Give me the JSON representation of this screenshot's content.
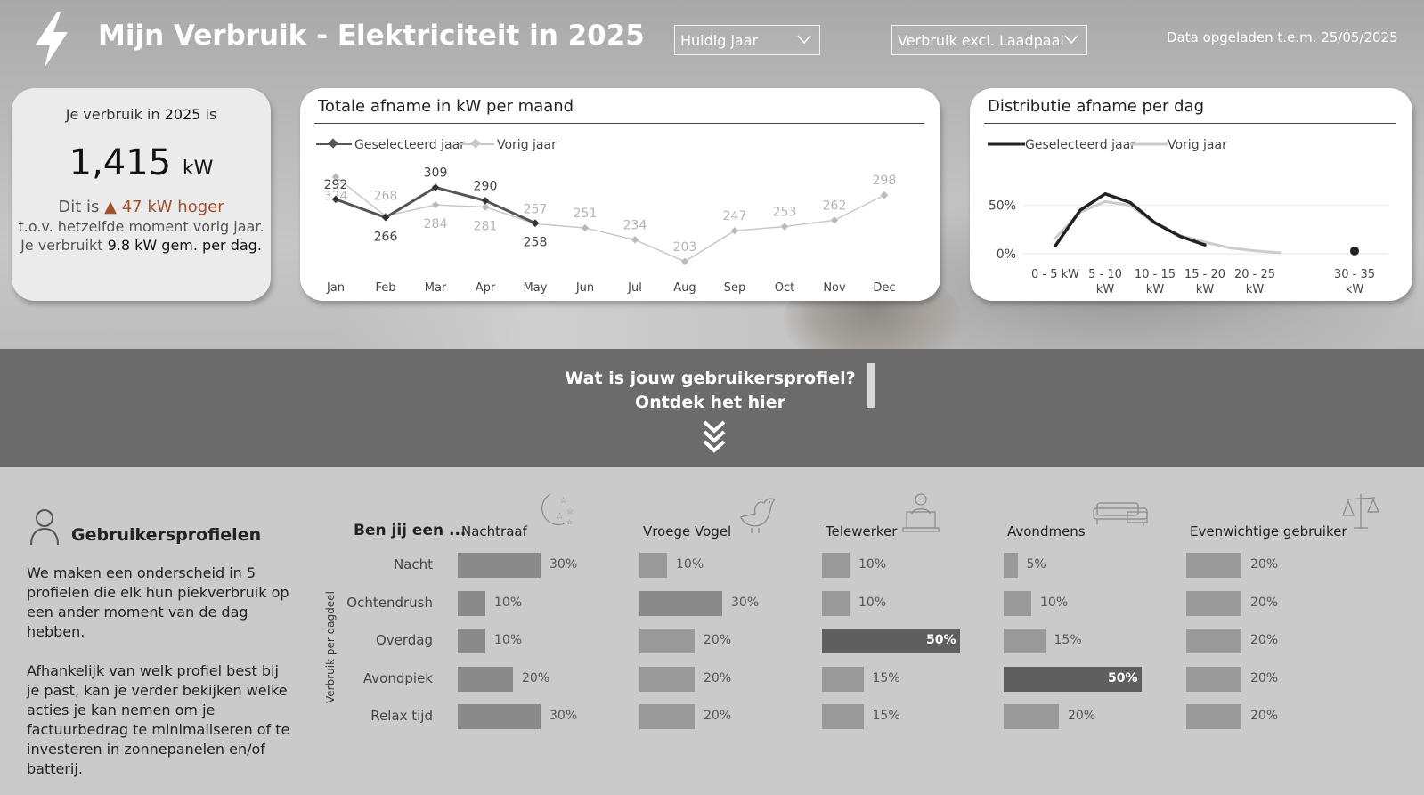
{
  "header": {
    "title": "Mijn Verbruik - Elektriciteit in 2025",
    "period_select": "Huidig jaar",
    "consumption_select": "Verbruik excl. Laadpaal",
    "data_loaded": "Data opgeladen t.e.m. 25/05/2025"
  },
  "kpi": {
    "line1_prefix": "Je verbruik in",
    "year": "2025",
    "line1_suffix": "is",
    "value": "1,415",
    "unit": "kW",
    "delta_prefix": "Dit is",
    "delta_arrow": "▲",
    "delta_text": "47 kW hoger",
    "line3": "t.o.v. hetzelfde moment vorig jaar.",
    "line4_prefix": "Je verbruikt",
    "line4_value": "9.8 kW gem. per dag."
  },
  "chart_data": [
    {
      "type": "line",
      "title": "Totale afname in kW per maand",
      "categories": [
        "Jan",
        "Feb",
        "Mar",
        "Apr",
        "May",
        "Jun",
        "Jul",
        "Aug",
        "Sep",
        "Oct",
        "Nov",
        "Dec"
      ],
      "series": [
        {
          "name": "Geselecteerd jaar",
          "values": [
            292,
            266,
            309,
            290,
            258,
            null,
            null,
            null,
            null,
            null,
            null,
            null
          ],
          "color": "#555555"
        },
        {
          "name": "Vorig jaar",
          "values": [
            324,
            268,
            284,
            281,
            257,
            251,
            234,
            203,
            247,
            253,
            262,
            298
          ],
          "color": "#c8c8c8"
        }
      ],
      "ylim": [
        190,
        330
      ],
      "legend": "top-left"
    },
    {
      "type": "line",
      "title": "Distributie afname per dag",
      "categories": [
        "0 - 5 kW",
        "5 - 10 kW",
        "10 - 15 kW",
        "15 - 20 kW",
        "20 - 25 kW",
        "30 - 35 kW"
      ],
      "yticks": [
        "50%",
        "0%"
      ],
      "series": [
        {
          "name": "Geselecteerd jaar",
          "points": [
            [
              2.5,
              8
            ],
            [
              5,
              45
            ],
            [
              7.5,
              62
            ],
            [
              10,
              53
            ],
            [
              12.5,
              32
            ],
            [
              15,
              18
            ],
            [
              17.5,
              9
            ],
            [
              32.5,
              1
            ]
          ],
          "color": "#222222"
        },
        {
          "name": "Vorig jaar",
          "points": [
            [
              2.5,
              16
            ],
            [
              5,
              43
            ],
            [
              7.5,
              54
            ],
            [
              10,
              50
            ],
            [
              12.5,
              31
            ],
            [
              15,
              19
            ],
            [
              17.5,
              12
            ],
            [
              20,
              6
            ],
            [
              22.5,
              3
            ],
            [
              25,
              1
            ]
          ],
          "color": "#cccccc"
        }
      ],
      "xlim": [
        0,
        35
      ],
      "ylim": [
        0,
        70
      ],
      "legend": "top-left"
    }
  ],
  "banner": {
    "line1": "Wat is jouw gebruikersprofiel?",
    "line2": "Ontdek het hier"
  },
  "profiles_section": {
    "title": "Gebruikersprofielen",
    "para1": "We maken een onderscheid in 5 profielen die elk hun piekverbruik op een ander moment van de dag hebben.",
    "para2": "Afhankelijk van welk profiel best bij je past, kan je verder bekijken welke acties je kan nemen om je factuurbedrag te minimaliseren of te investeren in zonnepanelen en/of batterij.",
    "question": "Ben jij een ...",
    "axis_label": "Verbruik per dagdeel",
    "rows": [
      "Nacht",
      "Ochtendrush",
      "Overdag",
      "Avondpiek",
      "Relax tijd"
    ],
    "profiles": [
      {
        "name": "Nachtraaf",
        "icon": "moon-stars-icon",
        "values": [
          30,
          10,
          10,
          20,
          30
        ],
        "labels": [
          "30%",
          "10%",
          "10%",
          "20%",
          "30%"
        ]
      },
      {
        "name": "Vroege Vogel",
        "icon": "bird-icon",
        "values": [
          10,
          30,
          20,
          20,
          20
        ],
        "labels": [
          "10%",
          "30%",
          "20%",
          "20%",
          "20%"
        ]
      },
      {
        "name": "Telewerker",
        "icon": "laptop-user-icon",
        "values": [
          10,
          10,
          50,
          15,
          15
        ],
        "labels": [
          "10%",
          "10%",
          "50%",
          "15%",
          "15%"
        ]
      },
      {
        "name": "Avondmens",
        "icon": "sofa-icon",
        "values": [
          5,
          10,
          15,
          50,
          20
        ],
        "labels": [
          "5%",
          "10%",
          "15%",
          "50%",
          "20%"
        ]
      },
      {
        "name": "Evenwichtige gebruiker",
        "icon": "scale-icon",
        "values": [
          20,
          20,
          20,
          20,
          20
        ],
        "labels": [
          "20%",
          "20%",
          "20%",
          "20%",
          "20%"
        ]
      }
    ]
  }
}
